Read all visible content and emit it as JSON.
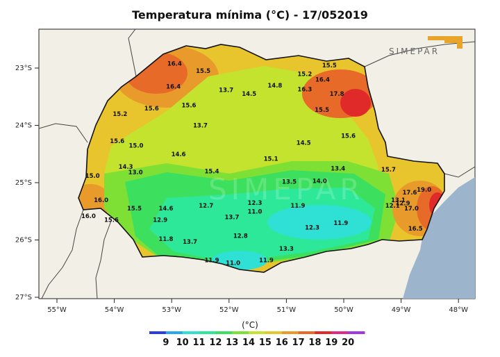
{
  "title": "Temperatura mínima  (°C) - 17/052019",
  "logo_text": "SIMEPAR",
  "lat_ticks": [
    {
      "label": "23°S",
      "lat": -23
    },
    {
      "label": "24°S",
      "lat": -24
    },
    {
      "label": "25°S",
      "lat": -25
    },
    {
      "label": "26°S",
      "lat": -26
    },
    {
      "label": "27°S",
      "lat": -27
    }
  ],
  "lon_ticks": [
    {
      "label": "55°W",
      "lon": -55
    },
    {
      "label": "54°W",
      "lon": -54
    },
    {
      "label": "53°W",
      "lon": -53
    },
    {
      "label": "52°W",
      "lon": -52
    },
    {
      "label": "51°W",
      "lon": -51
    },
    {
      "label": "50°W",
      "lon": -50
    },
    {
      "label": "49°W",
      "lon": -49
    },
    {
      "label": "48°W",
      "lon": -48
    }
  ],
  "station_values": [
    {
      "v": "16.4",
      "lon": -52.95,
      "lat": -22.92
    },
    {
      "v": "15.5",
      "lon": -52.45,
      "lat": -23.05
    },
    {
      "v": "16.4",
      "lon": -52.97,
      "lat": -23.32
    },
    {
      "v": "13.7",
      "lon": -52.05,
      "lat": -23.38
    },
    {
      "v": "14.5",
      "lon": -51.65,
      "lat": -23.45
    },
    {
      "v": "14.8",
      "lon": -51.2,
      "lat": -23.3
    },
    {
      "v": "15.2",
      "lon": -50.68,
      "lat": -23.1
    },
    {
      "v": "16.3",
      "lon": -50.68,
      "lat": -23.37
    },
    {
      "v": "16.4",
      "lon": -50.37,
      "lat": -23.2
    },
    {
      "v": "15.5",
      "lon": -50.25,
      "lat": -22.95
    },
    {
      "v": "17.8",
      "lon": -50.12,
      "lat": -23.45
    },
    {
      "v": "15.5",
      "lon": -50.38,
      "lat": -23.73
    },
    {
      "v": "15.6",
      "lon": -53.35,
      "lat": -23.7
    },
    {
      "v": "15.6",
      "lon": -52.7,
      "lat": -23.65
    },
    {
      "v": "15.2",
      "lon": -53.9,
      "lat": -23.8
    },
    {
      "v": "13.7",
      "lon": -52.5,
      "lat": -24.0
    },
    {
      "v": "15.6",
      "lon": -53.95,
      "lat": -24.27
    },
    {
      "v": "15.0",
      "lon": -53.62,
      "lat": -24.35
    },
    {
      "v": "14.5",
      "lon": -50.7,
      "lat": -24.3
    },
    {
      "v": "15.6",
      "lon": -49.92,
      "lat": -24.18
    },
    {
      "v": "14.6",
      "lon": -52.88,
      "lat": -24.5
    },
    {
      "v": "15.1",
      "lon": -51.27,
      "lat": -24.58
    },
    {
      "v": "14.3",
      "lon": -53.8,
      "lat": -24.72
    },
    {
      "v": "13.0",
      "lon": -53.63,
      "lat": -24.82
    },
    {
      "v": "15.4",
      "lon": -52.3,
      "lat": -24.8
    },
    {
      "v": "13.4",
      "lon": -50.1,
      "lat": -24.75
    },
    {
      "v": "15.7",
      "lon": -49.22,
      "lat": -24.77
    },
    {
      "v": "15.0",
      "lon": -54.38,
      "lat": -24.88
    },
    {
      "v": "13.5",
      "lon": -50.95,
      "lat": -24.98
    },
    {
      "v": "14.0",
      "lon": -50.42,
      "lat": -24.97
    },
    {
      "v": "17.6",
      "lon": -48.85,
      "lat": -25.17
    },
    {
      "v": "19.0",
      "lon": -48.6,
      "lat": -25.12
    },
    {
      "v": "16.0",
      "lon": -54.23,
      "lat": -25.3
    },
    {
      "v": "15.5",
      "lon": -53.65,
      "lat": -25.45
    },
    {
      "v": "14.6",
      "lon": -53.1,
      "lat": -25.45
    },
    {
      "v": "12.7",
      "lon": -52.4,
      "lat": -25.4
    },
    {
      "v": "12.3",
      "lon": -51.55,
      "lat": -25.35
    },
    {
      "v": "13.1",
      "lon": -49.05,
      "lat": -25.3
    },
    {
      "v": "12.9",
      "lon": -48.97,
      "lat": -25.36
    },
    {
      "v": "12.1",
      "lon": -49.15,
      "lat": -25.4
    },
    {
      "v": "11.9",
      "lon": -50.8,
      "lat": -25.4
    },
    {
      "v": "17.0",
      "lon": -48.82,
      "lat": -25.45
    },
    {
      "v": "11.0",
      "lon": -51.55,
      "lat": -25.5
    },
    {
      "v": "16.0",
      "lon": -54.45,
      "lat": -25.58
    },
    {
      "v": "15.6",
      "lon": -54.05,
      "lat": -25.65
    },
    {
      "v": "12.9",
      "lon": -53.2,
      "lat": -25.65
    },
    {
      "v": "13.7",
      "lon": -51.95,
      "lat": -25.6
    },
    {
      "v": "11.9",
      "lon": -50.05,
      "lat": -25.7
    },
    {
      "v": "12.3",
      "lon": -50.55,
      "lat": -25.78
    },
    {
      "v": "16.5",
      "lon": -48.75,
      "lat": -25.8
    },
    {
      "v": "12.8",
      "lon": -51.8,
      "lat": -25.93
    },
    {
      "v": "11.8",
      "lon": -53.1,
      "lat": -25.98
    },
    {
      "v": "13.7",
      "lon": -52.68,
      "lat": -26.03
    },
    {
      "v": "13.3",
      "lon": -51.0,
      "lat": -26.15
    },
    {
      "v": "11.9",
      "lon": -52.3,
      "lat": -26.35
    },
    {
      "v": "11.0",
      "lon": -51.93,
      "lat": -26.4
    },
    {
      "v": "11.9",
      "lon": -51.35,
      "lat": -26.35
    }
  ],
  "colorbar": {
    "unit_label": "(°C)",
    "tick_labels": [
      "9",
      "10",
      "11",
      "12",
      "13",
      "14",
      "15",
      "16",
      "17",
      "18",
      "19",
      "20"
    ],
    "colors": [
      "#2c3ee0",
      "#27a8e8",
      "#2fe0d4",
      "#2ee89a",
      "#3de05e",
      "#7ee035",
      "#c3e32f",
      "#e8c52d",
      "#e89a2b",
      "#e86a28",
      "#e02a2a",
      "#e02a8a",
      "#a03ae0"
    ]
  }
}
